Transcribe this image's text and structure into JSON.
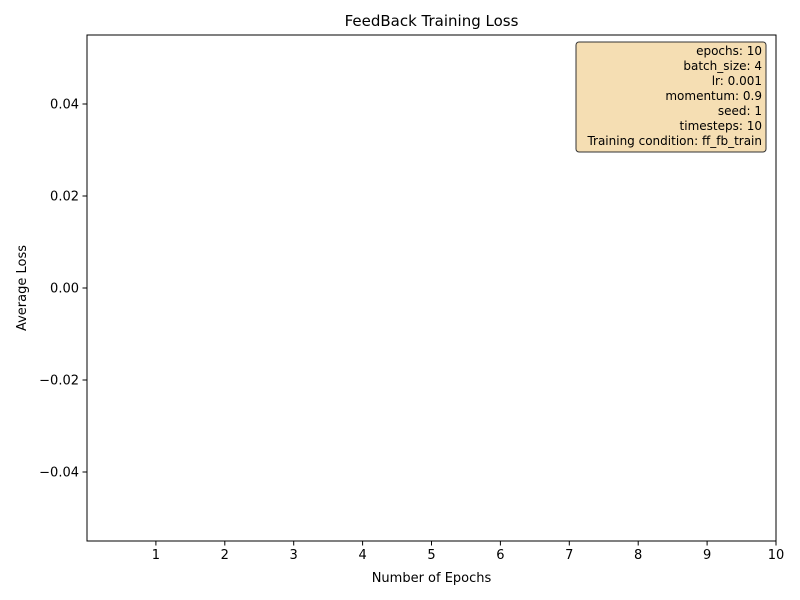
{
  "chart_data": {
    "type": "line",
    "title": "FeedBack Training Loss",
    "xlabel": "Number of Epochs",
    "ylabel": "Average Loss",
    "xlim": [
      0,
      10
    ],
    "ylim": [
      -0.055,
      0.055
    ],
    "x_ticks": [
      1,
      2,
      3,
      4,
      5,
      6,
      7,
      8,
      9,
      10
    ],
    "x_tick_labels": [
      "1",
      "2",
      "3",
      "4",
      "5",
      "6",
      "7",
      "8",
      "9",
      "10"
    ],
    "y_ticks": [
      -0.04,
      -0.02,
      0.0,
      0.02,
      0.04
    ],
    "y_tick_labels": [
      "−0.04",
      "−0.02",
      "0.00",
      "0.02",
      "0.04"
    ],
    "grid": false,
    "series": [
      {
        "values": []
      }
    ],
    "info_box": {
      "placement": "top-right",
      "background": "#f5deb3",
      "lines": [
        "epochs: 10",
        "batch_size: 4",
        "lr: 0.001",
        "momentum: 0.9",
        "seed: 1",
        "timesteps: 10",
        "Training condition: ff_fb_train"
      ]
    }
  }
}
